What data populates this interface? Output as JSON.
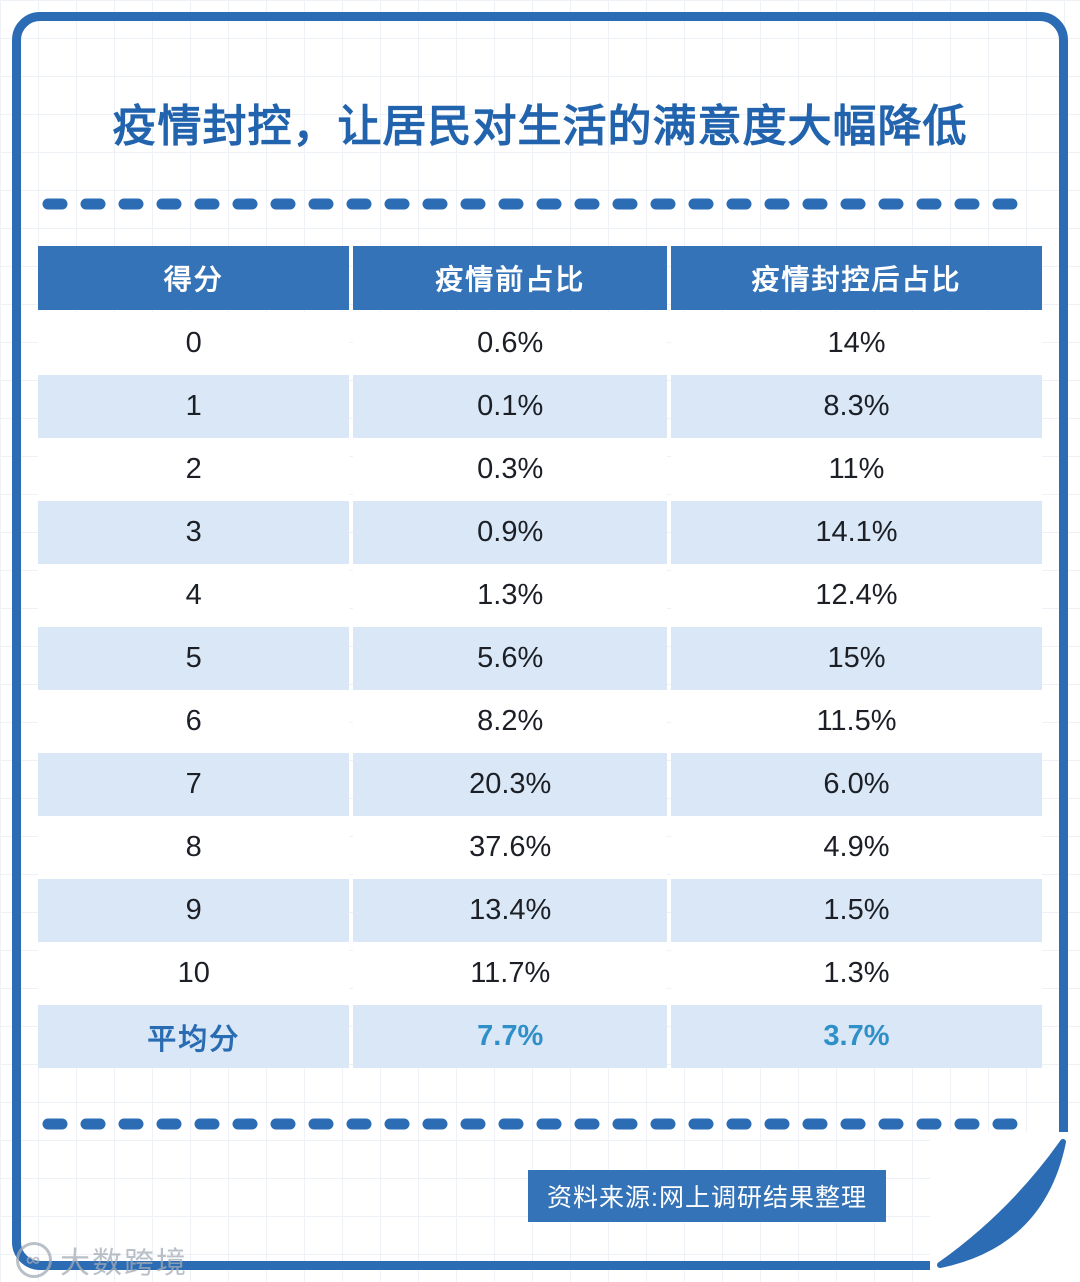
{
  "title": "疫情封控，让居民对生活的满意度大幅降低",
  "colors": {
    "accent_blue": "#2b6cb4",
    "header_bg": "#3473b7",
    "row_alt_bg": "#d9e7f6",
    "title_color": "#2263ae",
    "summary_label_color": "#2a6cb3",
    "summary_value_color": "#2f8fc9",
    "footer_bg": "#3473b7"
  },
  "table": {
    "headers": [
      "得分",
      "疫情前占比",
      "疫情封控后占比"
    ],
    "rows": [
      [
        "0",
        "0.6%",
        "14%"
      ],
      [
        "1",
        "0.1%",
        "8.3%"
      ],
      [
        "2",
        "0.3%",
        "11%"
      ],
      [
        "3",
        "0.9%",
        "14.1%"
      ],
      [
        "4",
        "1.3%",
        "12.4%"
      ],
      [
        "5",
        "5.6%",
        "15%"
      ],
      [
        "6",
        "8.2%",
        "11.5%"
      ],
      [
        "7",
        "20.3%",
        "6.0%"
      ],
      [
        "8",
        "37.6%",
        "4.9%"
      ],
      [
        "9",
        "13.4%",
        "1.5%"
      ],
      [
        "10",
        "11.7%",
        "1.3%"
      ]
    ],
    "summary_row": [
      "平均分",
      "7.7%",
      "3.7%"
    ]
  },
  "footer": {
    "source_label": "资料来源:网上调研结果整理"
  },
  "watermark": {
    "logo": "∞",
    "label": "大数跨境"
  },
  "chart_data": {
    "type": "table",
    "title": "疫情封控，让居民对生活的满意度大幅降低",
    "columns": [
      "得分",
      "疫情前占比",
      "疫情封控后占比"
    ],
    "categories": [
      "0",
      "1",
      "2",
      "3",
      "4",
      "5",
      "6",
      "7",
      "8",
      "9",
      "10"
    ],
    "series": [
      {
        "name": "疫情前占比",
        "unit": "%",
        "values": [
          0.6,
          0.1,
          0.3,
          0.9,
          1.3,
          5.6,
          8.2,
          20.3,
          37.6,
          13.4,
          11.7
        ],
        "average": 7.7
      },
      {
        "name": "疫情封控后占比",
        "unit": "%",
        "values": [
          14,
          8.3,
          11,
          14.1,
          12.4,
          15,
          11.5,
          6.0,
          4.9,
          1.5,
          1.3
        ],
        "average": 3.7
      }
    ],
    "summary_label": "平均分",
    "source": "资料来源:网上调研结果整理"
  }
}
